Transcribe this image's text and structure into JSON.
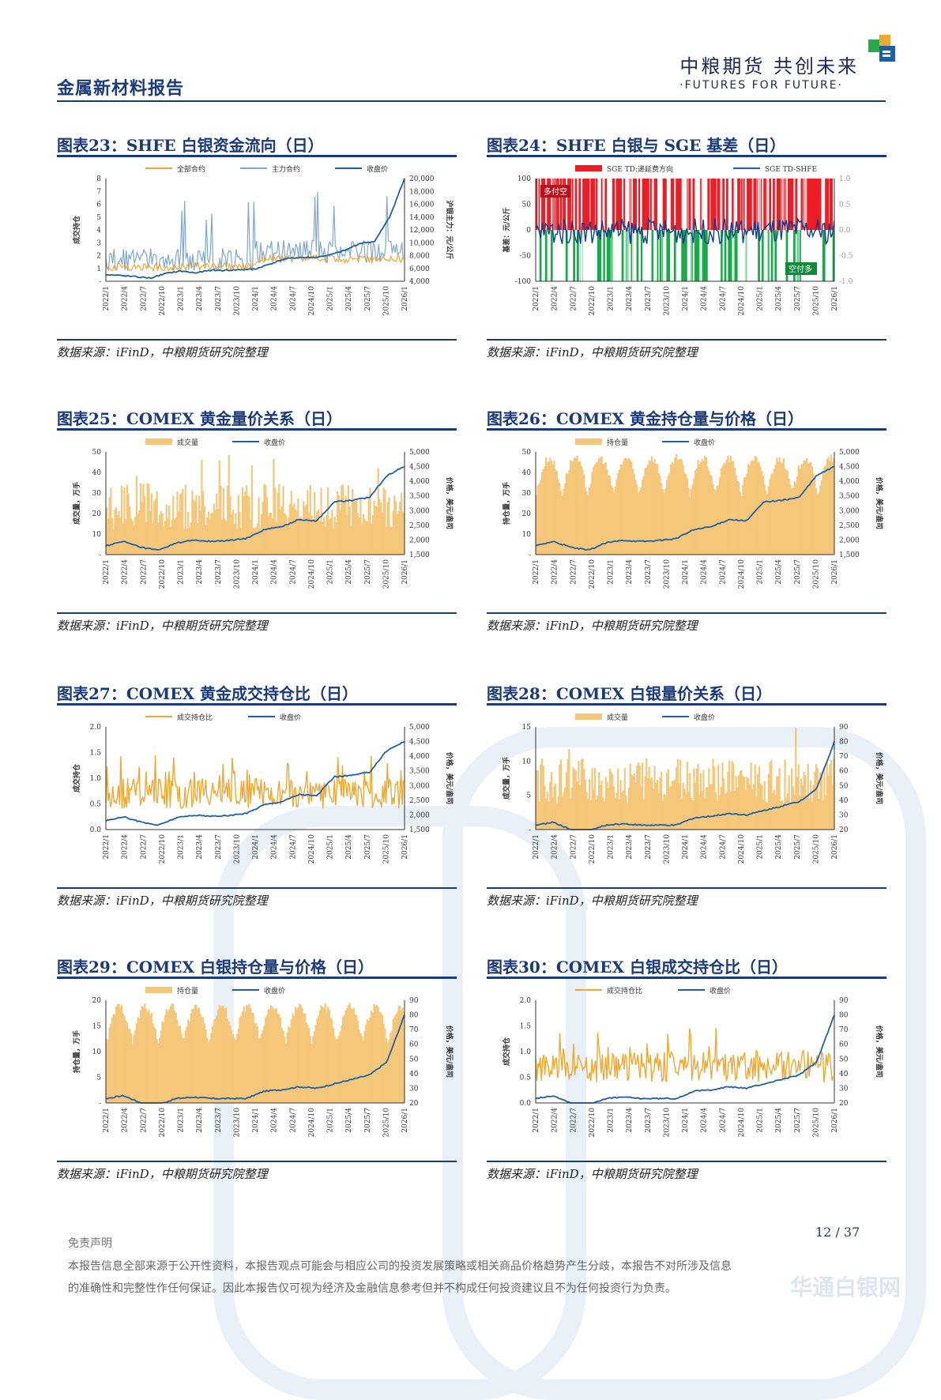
{
  "header": {
    "report_title": "金属新材料报告",
    "brand_name": "中粮期货  共创未来",
    "brand_tagline": "·FUTURES FOR FUTURE·"
  },
  "figures": [
    {
      "title": "图表23：SHFE 白银资金流向（日）",
      "source": "数据来源：iFinD，中粮期货研究院整理"
    },
    {
      "title": "图表24：SHFE 白银与 SGE 基差（日）",
      "source": "数据来源：iFinD，中粮期货研究院整理"
    },
    {
      "title": "图表25：COMEX 黄金量价关系（日）",
      "source": "数据来源：iFinD，中粮期货研究院整理"
    },
    {
      "title": "图表26：COMEX 黄金持仓量与价格（日）",
      "source": "数据来源：iFinD，中粮期货研究院整理"
    },
    {
      "title": "图表27：COMEX 黄金成交持仓比（日）",
      "source": "数据来源：iFinD，中粮期货研究院整理"
    },
    {
      "title": "图表28：COMEX 白银量价关系（日）",
      "source": "数据来源：iFinD，中粮期货研究院整理"
    },
    {
      "title": "图表29：COMEX 白银持仓量与价格（日）",
      "source": "数据来源：iFinD，中粮期货研究院整理"
    },
    {
      "title": "图表30：COMEX 白银成交持仓比（日）",
      "source": "数据来源：iFinD，中粮期货研究院整理"
    }
  ],
  "footer": {
    "page": "12 / 37",
    "disclaimer_title": "免责声明",
    "disclaimer_line1": "本报告信息全部来源于公开性资料，本报告观点可能会与相应公司的投资发展策略或相关商品价格趋势产生分歧，本报告不对所涉及信息",
    "disclaimer_line2": "的准确性和完整性作任何保证。因此本报告仅可视为经济及金融信息参考但并不构成任何投资建议且不为任何投资行为负责。",
    "watermark": "华通白银网"
  },
  "colors": {
    "navy": "#1a3a7a",
    "orange": "#f0a830",
    "bar": "#f5c77a",
    "blue": "#1f5fa8",
    "lightblue": "#7fa8d0",
    "red": "#ee1c24",
    "green": "#1aa84a"
  },
  "chart_data": [
    {
      "type": "area",
      "xlabels": [
        "2022/1",
        "2022/4",
        "2022/7",
        "2022/10",
        "2023/1",
        "2023/4",
        "2023/7",
        "2023/10",
        "2024/1",
        "2024/4",
        "2024/7",
        "2024/10",
        "2025/1",
        "2025/4",
        "2025/7",
        "2025/10",
        "2026/1"
      ],
      "legend": [
        "全部合约",
        "主力合约",
        "收盘价"
      ],
      "y_left_ticks": [
        "8",
        "7",
        "6",
        "5",
        "4",
        "3",
        "2",
        "1",
        "-"
      ],
      "y_right_ticks": [
        "20,000",
        "18,000",
        "16,000",
        "14,000",
        "12,000",
        "10,000",
        "8,000",
        "6,000",
        "4,000"
      ],
      "ylabel_left": "成交持仓",
      "ylabel_right": "沪银主力：元/公斤",
      "ylim_left": [
        0,
        8
      ],
      "ylim_right": [
        4000,
        20000
      ],
      "price": [
        5000,
        4900,
        4700,
        4500,
        5200,
        5600,
        5300,
        5700,
        5700,
        5800,
        5900,
        6700,
        7500,
        7700,
        7700,
        8100,
        8800,
        9900,
        10200,
        14000,
        20000
      ]
    },
    {
      "type": "bar+line",
      "xlabels": [
        "2022/1",
        "2022/4",
        "2022/7",
        "2022/10",
        "2023/1",
        "2023/4",
        "2023/7",
        "2023/10",
        "2024/1",
        "2024/4",
        "2024/7",
        "2024/10",
        "2025/1",
        "2025/4",
        "2025/7",
        "2025/10",
        "2026/1"
      ],
      "legend": [
        "SGE TD:递延费方向",
        "SGE TD-SHFE"
      ],
      "y_left_ticks": [
        "100",
        "50",
        "0",
        "-50",
        "-100"
      ],
      "y_right_ticks": [
        "1.0",
        "0.5",
        "0.0",
        "-0.5",
        "-1.0"
      ],
      "ylabel_left": "基差：元/公斤",
      "ylim_left": [
        -100,
        100
      ],
      "ylim_right": [
        -1,
        1
      ],
      "annotations": [
        "多付空",
        "空付多"
      ]
    },
    {
      "type": "bar+line",
      "xlabels": [
        "2022/1",
        "2022/4",
        "2022/7",
        "2022/10",
        "2023/1",
        "2023/4",
        "2023/7",
        "2023/10",
        "2024/1",
        "2024/4",
        "2024/7",
        "2024/10",
        "2025/1",
        "2025/4",
        "2025/7",
        "2025/10",
        "2026/1"
      ],
      "legend": [
        "成交量",
        "收盘价"
      ],
      "y_left_ticks": [
        "50",
        "40",
        "30",
        "20",
        "10",
        "-"
      ],
      "y_right_ticks": [
        "5,000",
        "4,500",
        "4,000",
        "3,500",
        "3,000",
        "2,500",
        "2,000",
        "1,500"
      ],
      "ylabel_left": "成交量，万手",
      "ylabel_right": "价格，美元/盎司",
      "ylim_left": [
        0,
        50
      ],
      "ylim_right": [
        1500,
        5000
      ],
      "price": [
        1800,
        1950,
        1750,
        1650,
        1900,
        1990,
        1950,
        1980,
        2050,
        2350,
        2450,
        2700,
        2650,
        3300,
        3350,
        3450,
        4200,
        4500
      ]
    },
    {
      "type": "bar+line",
      "xlabels": [
        "2022/1",
        "2022/4",
        "2022/7",
        "2022/10",
        "2023/1",
        "2023/4",
        "2023/7",
        "2023/10",
        "2024/1",
        "2024/4",
        "2024/7",
        "2024/10",
        "2025/1",
        "2025/4",
        "2025/7",
        "2025/10",
        "2026/1"
      ],
      "legend": [
        "持仓量",
        "收盘价"
      ],
      "y_left_ticks": [
        "50",
        "40",
        "30",
        "20",
        "10",
        "-"
      ],
      "y_right_ticks": [
        "5,000",
        "4,500",
        "4,000",
        "3,500",
        "3,000",
        "2,500",
        "2,000",
        "1,500"
      ],
      "ylabel_left": "持仓量，万手",
      "ylabel_right": "价格，美元/盎司",
      "ylim_left": [
        0,
        50
      ],
      "ylim_right": [
        1500,
        5000
      ],
      "price": [
        1800,
        1950,
        1750,
        1650,
        1900,
        1990,
        1950,
        1980,
        2050,
        2350,
        2450,
        2700,
        2650,
        3300,
        3350,
        3450,
        4200,
        4500
      ]
    },
    {
      "type": "line",
      "xlabels": [
        "2022/1",
        "2022/4",
        "2022/7",
        "2022/10",
        "2023/1",
        "2023/4",
        "2023/7",
        "2023/10",
        "2024/1",
        "2024/4",
        "2024/7",
        "2024/10",
        "2025/1",
        "2025/4",
        "2025/7",
        "2025/10",
        "2026/1"
      ],
      "legend": [
        "成交持仓比",
        "收盘价"
      ],
      "y_left_ticks": [
        "2.0",
        "1.5",
        "1.0",
        "0.5",
        "0.0"
      ],
      "y_right_ticks": [
        "5,000",
        "4,500",
        "4,000",
        "3,500",
        "3,000",
        "2,500",
        "2,000",
        "1,500"
      ],
      "ylabel_left": "成交持仓",
      "ylabel_right": "价格，美元/盎司",
      "ylim_left": [
        0,
        2
      ],
      "ylim_right": [
        1500,
        5000
      ],
      "price": [
        1800,
        1950,
        1750,
        1650,
        1900,
        1990,
        1950,
        1980,
        2050,
        2350,
        2450,
        2700,
        2650,
        3300,
        3350,
        3450,
        4200,
        4500
      ]
    },
    {
      "type": "bar+line",
      "xlabels": [
        "2022/1",
        "2022/4",
        "2022/7",
        "2022/10",
        "2023/1",
        "2023/4",
        "2023/7",
        "2023/10",
        "2024/1",
        "2024/4",
        "2024/7",
        "2024/10",
        "2025/1",
        "2025/4",
        "2025/7",
        "2025/10",
        "2026/1"
      ],
      "legend": [
        "成交量",
        "收盘价"
      ],
      "y_left_ticks": [
        "15",
        "10",
        "5",
        "-"
      ],
      "y_right_ticks": [
        "90",
        "80",
        "70",
        "60",
        "50",
        "40",
        "30",
        "20"
      ],
      "ylabel_left": "成交量，万手",
      "ylabel_right": "价格，美元/盎司",
      "ylim_left": [
        0,
        15
      ],
      "ylim_right": [
        20,
        90
      ],
      "price": [
        23,
        25,
        20,
        19,
        23,
        24,
        23,
        23,
        23,
        28,
        29,
        31,
        30,
        33,
        36,
        39,
        48,
        80
      ]
    },
    {
      "type": "bar+line",
      "xlabels": [
        "2022/1",
        "2022/4",
        "2022/7",
        "2022/10",
        "2023/1",
        "2023/4",
        "2023/7",
        "2023/10",
        "2024/1",
        "2024/4",
        "2024/7",
        "2024/10",
        "2025/1",
        "2025/4",
        "2025/7",
        "2025/10",
        "2026/1"
      ],
      "legend": [
        "持仓量",
        "收盘价"
      ],
      "y_left_ticks": [
        "20",
        "15",
        "10",
        "5",
        "-"
      ],
      "y_right_ticks": [
        "90",
        "80",
        "70",
        "60",
        "50",
        "40",
        "30",
        "20"
      ],
      "ylabel_left": "持仓量，万手",
      "ylabel_right": "价格，美元/盎司",
      "ylim_left": [
        0,
        20
      ],
      "ylim_right": [
        20,
        90
      ],
      "price": [
        23,
        25,
        20,
        19,
        23,
        24,
        23,
        23,
        23,
        28,
        29,
        31,
        30,
        33,
        36,
        39,
        48,
        80
      ]
    },
    {
      "type": "line",
      "xlabels": [
        "2022/1",
        "2022/4",
        "2022/7",
        "2022/10",
        "2023/1",
        "2023/4",
        "2023/7",
        "2023/10",
        "2024/1",
        "2024/4",
        "2024/7",
        "2024/10",
        "2025/1",
        "2025/4",
        "2025/7",
        "2025/10",
        "2026/1"
      ],
      "legend": [
        "成交持仓比",
        "收盘价"
      ],
      "y_left_ticks": [
        "2.0",
        "1.5",
        "1.0",
        "0.5",
        "0.0"
      ],
      "y_right_ticks": [
        "90",
        "80",
        "70",
        "60",
        "50",
        "40",
        "30",
        "20"
      ],
      "ylabel_left": "成交持仓",
      "ylabel_right": "价格，美元/盎司",
      "ylim_left": [
        0,
        2
      ],
      "ylim_right": [
        20,
        90
      ],
      "price": [
        23,
        25,
        20,
        19,
        23,
        24,
        23,
        23,
        23,
        28,
        29,
        31,
        30,
        33,
        36,
        39,
        48,
        80
      ]
    }
  ]
}
